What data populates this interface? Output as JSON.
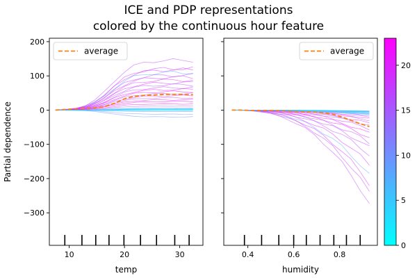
{
  "chart_data": {
    "type": "line",
    "title_line1": "ICE and PDP representations",
    "title_line2": "colored by the continuous hour feature",
    "ylabel": "Partial dependence",
    "shared_y": true,
    "ylim": [
      -395,
      210
    ],
    "yticks": [
      -300,
      -200,
      -100,
      0,
      100,
      200
    ],
    "colorbar": {
      "cmap": "cool",
      "range": [
        0,
        23
      ],
      "ticks": [
        0,
        5,
        10,
        15,
        20
      ]
    },
    "panels": [
      {
        "xlabel": "temp",
        "xlim": [
          6.4,
          34.2
        ],
        "xticks": [
          10,
          20,
          30
        ],
        "rug": [
          9.2,
          12.3,
          14.8,
          17.2,
          19.9,
          22.9,
          25.8,
          29.1,
          31.7
        ],
        "legend": "average",
        "legend_loc": "upper left",
        "x": [
          7.5,
          9.3,
          11.1,
          12.9,
          14.6,
          16.4,
          18.2,
          20.0,
          21.7,
          23.5,
          25.3,
          27.1,
          28.8,
          30.6,
          32.4
        ],
        "average": [
          0,
          2,
          4,
          5,
          6,
          10,
          20,
          33,
          40,
          43,
          44,
          46,
          46,
          46,
          45
        ],
        "ice_finals": [
          146,
          122,
          118,
          110,
          102,
          96,
          88,
          80,
          74,
          66,
          60,
          54,
          48,
          42,
          36,
          30,
          25,
          18,
          12,
          6,
          2,
          -4,
          -12,
          -20,
          4,
          2,
          0,
          -2,
          1,
          3
        ],
        "ice_hours": [
          17,
          18,
          19,
          8,
          17,
          18,
          19,
          20,
          16,
          17,
          21,
          22,
          15,
          20,
          16,
          21,
          22,
          23,
          13,
          14,
          12,
          11,
          10,
          9,
          0,
          1,
          2,
          3,
          4,
          5
        ]
      },
      {
        "xlabel": "humidity",
        "xlim": [
          0.295,
          0.965
        ],
        "xticks": [
          0.4,
          0.6,
          0.8
        ],
        "rug": [
          0.385,
          0.46,
          0.535,
          0.6,
          0.655,
          0.715,
          0.775,
          0.83,
          0.89
        ],
        "legend": "average",
        "legend_loc": "upper right",
        "x": [
          0.33,
          0.37,
          0.41,
          0.45,
          0.49,
          0.53,
          0.57,
          0.61,
          0.65,
          0.69,
          0.73,
          0.77,
          0.81,
          0.85,
          0.89,
          0.93
        ],
        "average": [
          0,
          0,
          -1,
          -1,
          -1,
          -2,
          -3,
          -4,
          -5,
          -6,
          -8,
          -12,
          -20,
          -30,
          -40,
          -48
        ],
        "ice_finals": [
          -275,
          -240,
          -215,
          -190,
          -160,
          -130,
          -110,
          -95,
          -80,
          -68,
          -55,
          -45,
          -38,
          -30,
          -25,
          -20,
          -15,
          -12,
          -10,
          -8,
          -6,
          -5,
          -4,
          -3,
          -2,
          -8,
          -12,
          -15,
          -6,
          -4
        ],
        "ice_hours": [
          17,
          18,
          19,
          8,
          20,
          17,
          18,
          16,
          21,
          22,
          19,
          15,
          20,
          16,
          21,
          22,
          23,
          14,
          13,
          12,
          11,
          10,
          9,
          7,
          6,
          0,
          1,
          2,
          3,
          4
        ]
      }
    ]
  }
}
